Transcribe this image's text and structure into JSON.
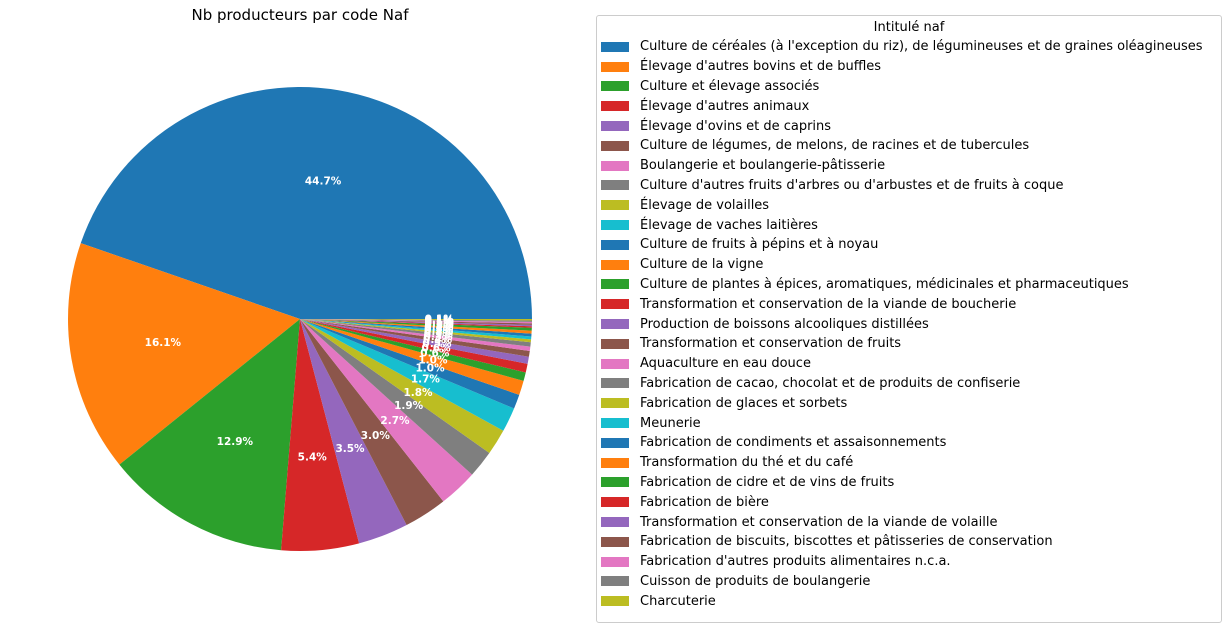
{
  "chart_data": {
    "type": "pie",
    "title": "Nb producteurs par code Naf",
    "legend_title": "Intitulé naf",
    "legend_position": "right",
    "colors": [
      "#1f77b4",
      "#ff7f0e",
      "#2ca02c",
      "#d62728",
      "#9467bd",
      "#8c564b",
      "#e377c2",
      "#7f7f7f",
      "#bcbd22",
      "#17becf"
    ],
    "slices": [
      {
        "label": "Culture de céréales (à l'exception du riz), de légumineuses et de graines oléagineuses",
        "value": 44.7,
        "display": "44.7%"
      },
      {
        "label": "Élevage d'autres bovins et de buffles",
        "value": 16.1,
        "display": "16.1%"
      },
      {
        "label": "Culture et élevage associés",
        "value": 12.9,
        "display": "12.9%"
      },
      {
        "label": "Élevage d'autres animaux",
        "value": 5.4,
        "display": "5.4%"
      },
      {
        "label": "Élevage d'ovins et de caprins",
        "value": 3.5,
        "display": "3.5%"
      },
      {
        "label": "Culture de légumes, de melons, de racines et de tubercules",
        "value": 3.0,
        "display": "3.0%"
      },
      {
        "label": "Boulangerie et boulangerie-pâtisserie",
        "value": 2.7,
        "display": "2.7%"
      },
      {
        "label": "Culture d'autres fruits d'arbres ou d'arbustes et de fruits à coque",
        "value": 1.9,
        "display": "1.9%"
      },
      {
        "label": "Élevage de volailles",
        "value": 1.8,
        "display": "1.8%"
      },
      {
        "label": "Élevage de vaches laitières",
        "value": 1.7,
        "display": "1.7%"
      },
      {
        "label": "Culture de fruits à pépins et à noyau",
        "value": 1.0,
        "display": "1.0%"
      },
      {
        "label": "Culture de la vigne",
        "value": 1.0,
        "display": "1.0%"
      },
      {
        "label": "Culture de plantes à épices, aromatiques, médicinales et pharmaceutiques",
        "value": 0.6,
        "display": "0.6%"
      },
      {
        "label": "Transformation et conservation de la viande de boucherie",
        "value": 0.6,
        "display": "0.6%"
      },
      {
        "label": "Production de boissons alcooliques distillées",
        "value": 0.5,
        "display": "0.5%"
      },
      {
        "label": "Transformation et conservation de fruits",
        "value": 0.4,
        "display": "0.4%"
      },
      {
        "label": "Aquaculture en eau douce",
        "value": 0.3,
        "display": "0.3%"
      },
      {
        "label": "Fabrication de cacao, chocolat et de produits de confiserie",
        "value": 0.3,
        "display": "0.3%"
      },
      {
        "label": "Fabrication de glaces et sorbets",
        "value": 0.2,
        "display": "0.2%"
      },
      {
        "label": "Meunerie",
        "value": 0.2,
        "display": "0.2%"
      },
      {
        "label": "Fabrication de condiments et assaisonnements",
        "value": 0.2,
        "display": "0.2%"
      },
      {
        "label": "Transformation du thé et du café",
        "value": 0.2,
        "display": "0.2%"
      },
      {
        "label": "Fabrication de cidre et de vins de fruits",
        "value": 0.2,
        "display": "0.2%"
      },
      {
        "label": "Fabrication de bière",
        "value": 0.1,
        "display": "0.1%"
      },
      {
        "label": "Transformation et conservation de la viande de volaille",
        "value": 0.1,
        "display": "0.1%"
      },
      {
        "label": "Fabrication de biscuits, biscottes et pâtisseries de conservation",
        "value": 0.1,
        "display": "0.1%"
      },
      {
        "label": "Fabrication d'autres produits alimentaires n.c.a.",
        "value": 0.1,
        "display": "0.1%"
      },
      {
        "label": "Cuisson de produits de boulangerie",
        "value": 0.1,
        "display": "0.1%"
      },
      {
        "label": "Charcuterie",
        "value": 0.1,
        "display": "0.1%"
      }
    ]
  }
}
